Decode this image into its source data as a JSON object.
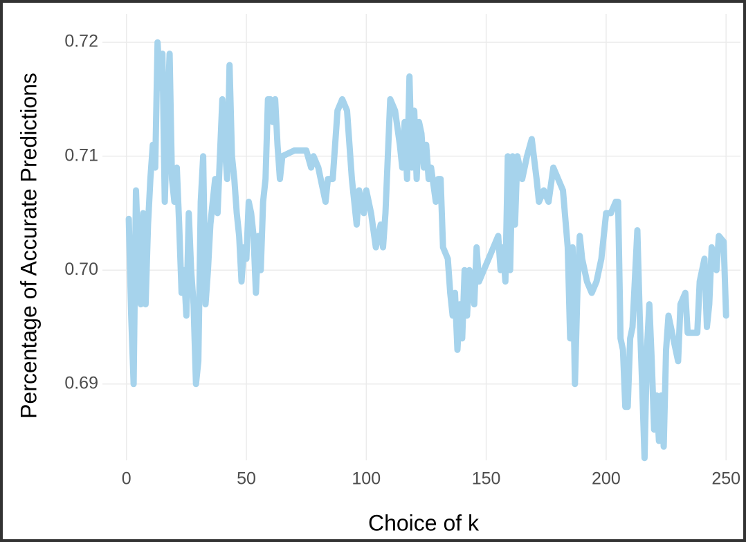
{
  "chart_data": {
    "type": "line",
    "x_label": "Choice of k",
    "y_label": "Percentage of Accurate Predictions",
    "xlim": [
      -10,
      256
    ],
    "ylim": [
      0.6833,
      0.7225
    ],
    "xticks": [
      0,
      50,
      100,
      150,
      200,
      250
    ],
    "yticks": [
      0.69,
      {
        "value": 0.7,
        "label": "0.70"
      },
      0.71,
      0.72
    ],
    "grid": true,
    "series": [
      {
        "color": "#a6d3ec",
        "x": [
          1,
          2,
          3,
          4,
          5,
          6,
          7,
          8,
          9,
          10,
          11,
          12,
          13,
          14,
          15,
          16,
          17,
          18,
          19,
          20,
          21,
          22,
          23,
          24,
          25,
          26,
          27,
          28,
          29,
          30,
          31,
          32,
          33,
          34,
          35,
          36,
          37,
          38,
          39,
          40,
          41,
          42,
          43,
          44,
          45,
          46,
          47,
          48,
          49,
          50,
          51,
          52,
          53,
          54,
          55,
          56,
          57,
          58,
          59,
          60,
          61,
          62,
          63,
          64,
          65,
          70,
          75,
          77,
          78,
          80,
          81,
          83,
          84,
          86,
          88,
          90,
          92,
          94,
          96,
          97,
          99,
          100,
          102,
          104,
          106,
          107,
          108,
          110,
          112,
          114,
          115,
          116,
          117,
          118,
          119,
          120,
          121,
          122,
          123,
          124,
          125,
          126,
          127,
          129,
          130,
          131,
          132,
          134,
          135,
          136,
          137,
          138,
          139,
          140,
          141,
          142,
          143,
          145,
          146,
          147,
          149,
          151,
          153,
          155,
          156,
          157,
          158,
          159,
          160,
          161,
          162,
          163,
          165,
          167,
          169,
          171,
          172,
          174,
          176,
          178,
          180,
          182,
          184,
          185,
          186,
          187,
          188,
          189,
          190,
          192,
          194,
          196,
          198,
          200,
          202,
          204,
          205,
          206,
          207,
          208,
          209,
          210,
          211,
          213,
          214,
          215,
          216,
          217,
          218,
          219,
          220,
          221,
          222,
          223,
          224,
          225,
          226,
          228,
          230,
          231,
          233,
          234,
          236,
          238,
          239,
          241,
          242,
          243,
          244,
          246,
          247,
          249,
          250
        ],
        "values": [
          0.7045,
          0.696,
          0.69,
          0.707,
          0.701,
          0.697,
          0.705,
          0.697,
          0.704,
          0.708,
          0.711,
          0.709,
          0.72,
          0.716,
          0.719,
          0.706,
          0.713,
          0.719,
          0.708,
          0.706,
          0.709,
          0.704,
          0.698,
          0.7,
          0.696,
          0.705,
          0.7,
          0.697,
          0.69,
          0.692,
          0.706,
          0.71,
          0.697,
          0.7,
          0.704,
          0.706,
          0.708,
          0.705,
          0.71,
          0.715,
          0.711,
          0.708,
          0.718,
          0.71,
          0.708,
          0.705,
          0.703,
          0.699,
          0.702,
          0.701,
          0.706,
          0.705,
          0.703,
          0.698,
          0.703,
          0.7,
          0.706,
          0.708,
          0.715,
          0.715,
          0.713,
          0.715,
          0.711,
          0.708,
          0.71,
          0.7105,
          0.7105,
          0.709,
          0.71,
          0.709,
          0.708,
          0.706,
          0.708,
          0.708,
          0.714,
          0.715,
          0.714,
          0.708,
          0.704,
          0.707,
          0.705,
          0.707,
          0.705,
          0.702,
          0.704,
          0.702,
          0.705,
          0.715,
          0.714,
          0.711,
          0.709,
          0.713,
          0.708,
          0.717,
          0.709,
          0.714,
          0.708,
          0.713,
          0.712,
          0.709,
          0.711,
          0.708,
          0.709,
          0.706,
          0.708,
          0.708,
          0.702,
          0.701,
          0.698,
          0.696,
          0.698,
          0.693,
          0.697,
          0.694,
          0.7,
          0.696,
          0.7,
          0.697,
          0.702,
          0.699,
          0.7,
          0.701,
          0.702,
          0.703,
          0.7,
          0.702,
          0.699,
          0.71,
          0.7,
          0.71,
          0.704,
          0.71,
          0.708,
          0.71,
          0.7115,
          0.708,
          0.706,
          0.707,
          0.706,
          0.709,
          0.708,
          0.707,
          0.702,
          0.694,
          0.702,
          0.69,
          0.698,
          0.703,
          0.701,
          0.699,
          0.698,
          0.699,
          0.701,
          0.705,
          0.705,
          0.706,
          0.706,
          0.694,
          0.693,
          0.688,
          0.688,
          0.694,
          0.695,
          0.7035,
          0.696,
          0.69,
          0.6835,
          0.693,
          0.697,
          0.692,
          0.686,
          0.689,
          0.685,
          0.689,
          0.6845,
          0.693,
          0.696,
          0.694,
          0.692,
          0.697,
          0.698,
          0.6945,
          0.6945,
          0.6945,
          0.699,
          0.701,
          0.695,
          0.697,
          0.702,
          0.7,
          0.703,
          0.7025,
          0.696
        ]
      }
    ]
  }
}
